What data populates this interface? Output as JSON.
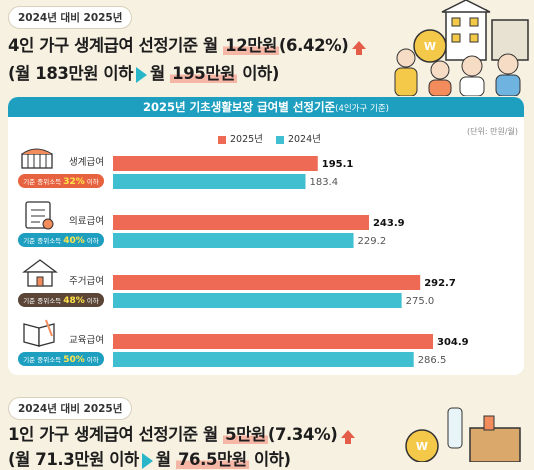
{
  "section1": {
    "badge": "2024년 대비 2025년",
    "line1_pre": "4인 가구 생계급여 선정기준 월 ",
    "line1_hl": "12만원",
    "line1_post": "(6.42%)",
    "line2_pre": "(월 183만원 이하",
    "line2_mid": "월 ",
    "line2_hl": "195만원",
    "line2_post": " 이하)"
  },
  "chart_title": "2025년 기초생활보장 급여별 선정기준",
  "chart_title_small": "(4인가구 기준)",
  "unit": "(단위: 만원/월)",
  "colors": {
    "y2025": "#ee6a55",
    "y2024": "#3fbfcf",
    "tag": "#3c2f2a",
    "accent": "#1f9fc0"
  },
  "chart_data": {
    "type": "bar",
    "orientation": "horizontal",
    "categories": [
      "생계급여",
      "의료급여",
      "주거급여",
      "교육급여"
    ],
    "series": [
      {
        "name": "2025년",
        "values": [
          195.1,
          243.9,
          292.7,
          304.9
        ]
      },
      {
        "name": "2024년",
        "values": [
          183.4,
          229.2,
          275.0,
          286.5
        ]
      }
    ],
    "value_labels": {
      "2025년": [
        "195.1",
        "243.9",
        "292.7",
        "304.9"
      ],
      "2024년": [
        "183.4",
        "229.2",
        "275.0",
        "286.5"
      ]
    },
    "criteria_tags": [
      {
        "prefix": "기준 중위소득 ",
        "pct": "32%",
        "suffix": " 이하"
      },
      {
        "prefix": "기준 중위소득 ",
        "pct": "40%",
        "suffix": " 이하"
      },
      {
        "prefix": "기준 중위소득 ",
        "pct": "48%",
        "suffix": " 이하"
      },
      {
        "prefix": "기준 중위소득 ",
        "pct": "50%",
        "suffix": " 이하"
      }
    ],
    "legend_placement": "top-center",
    "grid": false
  },
  "section2": {
    "badge": "2024년 대비 2025년",
    "line1_pre": "1인 가구 생계급여 선정기준 월 ",
    "line1_hl": "5만원",
    "line1_post": "(7.34%)",
    "line2_pre": "(월 71.3만원 이하",
    "line2_mid": "월 ",
    "line2_hl": "76.5만원",
    "line2_post": " 이하)"
  }
}
